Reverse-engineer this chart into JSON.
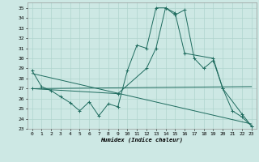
{
  "xlabel": "Humidex (Indice chaleur)",
  "background_color": "#cde8e4",
  "grid_color": "#b0d4ce",
  "line_color": "#1e6b5e",
  "ylim": [
    23,
    35.5
  ],
  "xlim": [
    -0.5,
    23.5
  ],
  "yticks": [
    23,
    24,
    25,
    26,
    27,
    28,
    29,
    30,
    31,
    32,
    33,
    34,
    35
  ],
  "xticks": [
    0,
    1,
    2,
    3,
    4,
    5,
    6,
    7,
    8,
    9,
    10,
    11,
    12,
    13,
    14,
    15,
    16,
    17,
    18,
    19,
    20,
    21,
    22,
    23
  ],
  "series1_x": [
    0,
    1,
    2,
    3,
    4,
    5,
    6,
    7,
    8,
    9,
    10,
    11,
    12,
    13,
    14,
    15,
    16,
    17,
    18,
    19,
    20,
    21,
    22,
    23
  ],
  "series1_y": [
    28.8,
    27.2,
    26.8,
    26.2,
    25.6,
    24.8,
    25.7,
    24.3,
    25.5,
    25.2,
    28.8,
    31.3,
    31.0,
    35.0,
    35.0,
    34.3,
    34.8,
    30.0,
    29.0,
    29.8,
    27.0,
    24.8,
    24.2,
    23.3
  ],
  "series2_x": [
    0,
    9,
    12,
    13,
    14,
    15,
    16,
    19,
    20,
    22,
    23
  ],
  "series2_y": [
    27.0,
    26.5,
    29.0,
    31.0,
    35.0,
    34.5,
    30.5,
    30.0,
    27.0,
    24.5,
    23.3
  ],
  "series3_x": [
    0,
    23
  ],
  "series3_y": [
    27.0,
    27.2
  ],
  "series4_x": [
    0,
    23
  ],
  "series4_y": [
    28.5,
    23.5
  ]
}
